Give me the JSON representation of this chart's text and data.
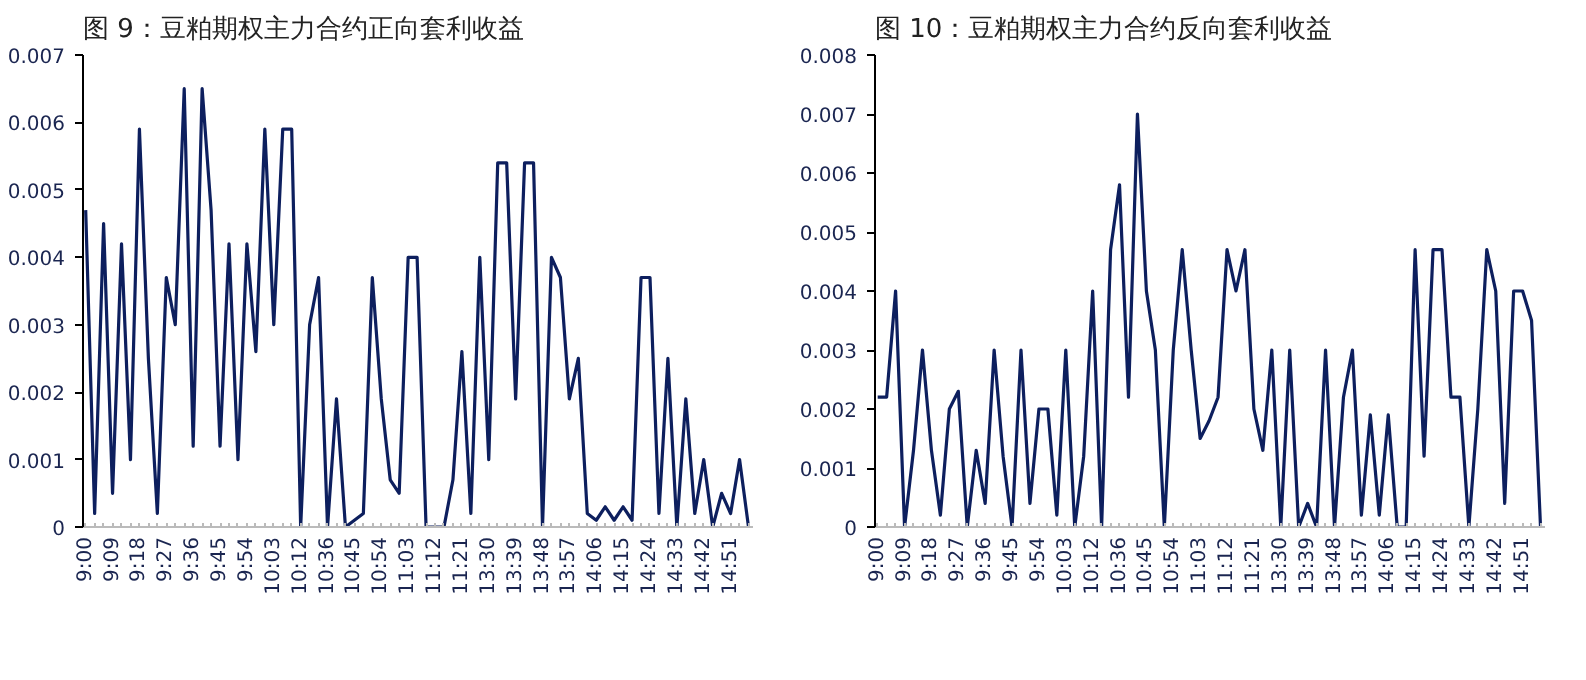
{
  "chart_data": [
    {
      "type": "line",
      "title": "图 9：豆粕期权主力合约正向套利收益",
      "categories": [
        "9:00",
        null,
        null,
        "9:09",
        null,
        null,
        "9:18",
        null,
        null,
        "9:27",
        null,
        null,
        "9:36",
        null,
        null,
        "9:45",
        null,
        null,
        "9:54",
        null,
        null,
        "10:03",
        null,
        null,
        "10:12",
        null,
        null,
        "10:36",
        null,
        null,
        "10:45",
        null,
        null,
        "10:54",
        null,
        null,
        "11:03",
        null,
        null,
        "11:12",
        null,
        null,
        "11:21",
        null,
        null,
        "13:30",
        null,
        null,
        "13:39",
        null,
        null,
        "13:48",
        null,
        null,
        "13:57",
        null,
        null,
        "14:06",
        null,
        null,
        "14:15",
        null,
        null,
        "14:24",
        null,
        null,
        "14:33",
        null,
        null,
        "14:42",
        null,
        null,
        "14:51",
        null,
        null
      ],
      "series": [
        {
          "color": "#0d1f5e",
          "values": [
            0.0047,
            0.0002,
            0.0045,
            0.0005,
            0.0042,
            0.001,
            0.0059,
            0.0025,
            0.0002,
            0.0037,
            0.003,
            0.0065,
            0.0012,
            0.0065,
            0.0047,
            0.0012,
            0.0042,
            0.001,
            0.0042,
            0.0026,
            0.0059,
            0.003,
            0.0059,
            0.0059,
            0,
            0.003,
            0.0037,
            0,
            0.0019,
            0,
            0.0001,
            0.0002,
            0.0037,
            0.0019,
            0.0007,
            0.0005,
            0.004,
            0.004,
            0,
            0,
            0,
            0.0007,
            0.0026,
            0.0002,
            0.004,
            0.001,
            0.0054,
            0.0054,
            0.0019,
            0.0054,
            0.0054,
            0,
            0.004,
            0.0037,
            0.0019,
            0.0025,
            0.0002,
            0.0001,
            0.0003,
            0.0001,
            0.0003,
            0.0001,
            0.0037,
            0.0037,
            0.0002,
            0.0025,
            0,
            0.0019,
            0.0002,
            0.001,
            0,
            0.0005,
            0.0002,
            0.001,
            0
          ]
        }
      ],
      "ylim": [
        0,
        0.007
      ],
      "yticks": [
        0,
        0.001,
        0.002,
        0.003,
        0.004,
        0.005,
        0.006,
        0.007
      ],
      "grid": false,
      "marker": "none",
      "line_style": "solid"
    },
    {
      "type": "line",
      "title": "图 10：豆粕期权主力合约反向套利收益",
      "categories": [
        "9:00",
        null,
        null,
        "9:09",
        null,
        null,
        "9:18",
        null,
        null,
        "9:27",
        null,
        null,
        "9:36",
        null,
        null,
        "9:45",
        null,
        null,
        "9:54",
        null,
        null,
        "10:03",
        null,
        null,
        "10:12",
        null,
        null,
        "10:36",
        null,
        null,
        "10:45",
        null,
        null,
        "10:54",
        null,
        null,
        "11:03",
        null,
        null,
        "11:12",
        null,
        null,
        "11:21",
        null,
        null,
        "13:30",
        null,
        null,
        "13:39",
        null,
        null,
        "13:48",
        null,
        null,
        "13:57",
        null,
        null,
        "14:06",
        null,
        null,
        "14:15",
        null,
        null,
        "14:24",
        null,
        null,
        "14:33",
        null,
        null,
        "14:42",
        null,
        null,
        "14:51",
        null,
        null
      ],
      "series": [
        {
          "color": "#0d1f5e",
          "values": [
            0.0022,
            0.0022,
            0.004,
            0,
            0.0013,
            0.003,
            0.0013,
            0.0002,
            0.002,
            0.0023,
            0,
            0.0013,
            0.0004,
            0.003,
            0.0012,
            0,
            0.003,
            0.0004,
            0.002,
            0.002,
            0.0002,
            0.003,
            0,
            0.0012,
            0.004,
            0,
            0.0047,
            0.0058,
            0.0022,
            0.007,
            0.004,
            0.003,
            0,
            0.003,
            0.0047,
            0.003,
            0.0015,
            0.0018,
            0.0022,
            0.0047,
            0.004,
            0.0047,
            0.002,
            0.0013,
            0.003,
            0,
            0.003,
            0,
            0.0004,
            0,
            0.003,
            0,
            0.0022,
            0.003,
            0.0002,
            0.0019,
            0.0002,
            0.0019,
            0,
            0,
            0.0047,
            0.0012,
            0.0047,
            0.0047,
            0.0022,
            0.0022,
            0,
            0.002,
            0.0047,
            0.004,
            0.0004,
            0.004,
            0.004,
            0.0035,
            0
          ]
        }
      ],
      "ylim": [
        0,
        0.008
      ],
      "yticks": [
        0,
        0.001,
        0.002,
        0.003,
        0.004,
        0.005,
        0.006,
        0.007,
        0.008
      ],
      "grid": false,
      "marker": "none",
      "line_style": "solid"
    }
  ]
}
